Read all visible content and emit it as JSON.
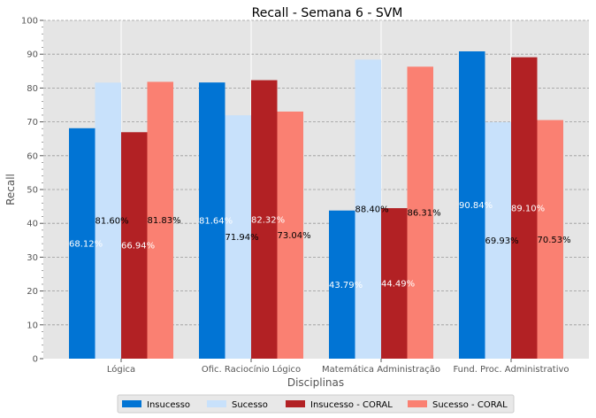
{
  "chart_data": {
    "type": "bar",
    "title": "Recall - Semana 6 - SVM",
    "xlabel": "Disciplinas",
    "ylabel": "Recall",
    "ylim": [
      0,
      100
    ],
    "yticks": [
      0,
      10,
      20,
      30,
      40,
      50,
      60,
      70,
      80,
      90,
      100
    ],
    "grid": true,
    "legend": "bottom-center",
    "categories": [
      "Lógica",
      "Ofic. Raciocínio Lógico",
      "Matemática Administração",
      "Fund. Proc. Administrativo"
    ],
    "series": [
      {
        "name": "Insucesso",
        "color": "#0174d4",
        "label_color": "#ffffff",
        "values": [
          68.12,
          81.64,
          43.79,
          90.84
        ],
        "labels": [
          "68.12%",
          "81.64%",
          "43.79%",
          "90.84%"
        ]
      },
      {
        "name": "Sucesso",
        "color": "#c8e1fb",
        "label_color": "#000000",
        "values": [
          81.6,
          71.94,
          88.4,
          69.93
        ],
        "labels": [
          "81.60%",
          "71.94%",
          "88.40%",
          "69.93%"
        ]
      },
      {
        "name": "Insucesso - CORAL",
        "color": "#b22124",
        "label_color": "#ffffff",
        "values": [
          66.94,
          82.32,
          44.49,
          89.1
        ],
        "labels": [
          "66.94%",
          "82.32%",
          "44.49%",
          "89.10%"
        ]
      },
      {
        "name": "Sucesso - CORAL",
        "color": "#fa8072",
        "label_color": "#000000",
        "values": [
          81.83,
          73.04,
          86.31,
          70.53
        ],
        "labels": [
          "81.83%",
          "73.04%",
          "86.31%",
          "70.53%"
        ]
      }
    ]
  }
}
